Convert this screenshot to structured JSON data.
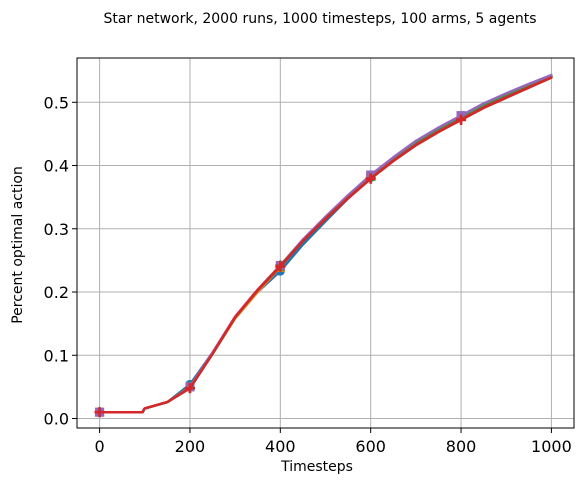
{
  "chart_data": {
    "type": "line",
    "title": "Star network, 2000 runs, 1000 timesteps, 100 arms, 5 agents",
    "xlabel": "Timesteps",
    "ylabel": "Percent optimal action",
    "xlim": [
      -50,
      1050
    ],
    "ylim": [
      -0.015,
      0.57
    ],
    "xticks": [
      0,
      200,
      400,
      600,
      800,
      1000
    ],
    "yticks": [
      0.0,
      0.1,
      0.2,
      0.3,
      0.4,
      0.5
    ],
    "xtick_labels": [
      "0",
      "200",
      "400",
      "600",
      "800",
      "1000"
    ],
    "ytick_labels": [
      "0.0",
      "0.1",
      "0.2",
      "0.3",
      "0.4",
      "0.5"
    ],
    "grid": true,
    "legend": "none",
    "x": [
      0,
      50,
      95,
      100,
      150,
      200,
      250,
      300,
      350,
      400,
      450,
      500,
      550,
      600,
      650,
      700,
      750,
      800,
      850,
      900,
      950,
      1000
    ],
    "marker_x": [
      0,
      200,
      400,
      600,
      800
    ],
    "series": [
      {
        "color": "#1f77b4",
        "marker": "circle",
        "values": [
          0.01,
          0.01,
          0.01,
          0.016,
          0.026,
          0.054,
          0.104,
          0.16,
          0.2,
          0.233,
          0.275,
          0.312,
          0.348,
          0.381,
          0.41,
          0.436,
          0.458,
          0.477,
          0.496,
          0.512,
          0.527,
          0.541
        ]
      },
      {
        "color": "#ff7f0e",
        "marker": "square",
        "values": [
          0.01,
          0.01,
          0.01,
          0.016,
          0.026,
          0.05,
          0.102,
          0.158,
          0.2,
          0.239,
          0.281,
          0.318,
          0.352,
          0.384,
          0.412,
          0.438,
          0.459,
          0.478,
          0.497,
          0.512,
          0.527,
          0.541
        ]
      },
      {
        "color": "#2ca02c",
        "marker": "triangle",
        "values": [
          0.01,
          0.01,
          0.01,
          0.016,
          0.026,
          0.051,
          0.103,
          0.16,
          0.203,
          0.24,
          0.28,
          0.316,
          0.35,
          0.382,
          0.411,
          0.437,
          0.458,
          0.477,
          0.495,
          0.511,
          0.526,
          0.54
        ]
      },
      {
        "color": "#9467bd",
        "marker": "square",
        "values": [
          0.01,
          0.01,
          0.01,
          0.016,
          0.026,
          0.05,
          0.104,
          0.161,
          0.204,
          0.242,
          0.283,
          0.319,
          0.353,
          0.385,
          0.413,
          0.439,
          0.46,
          0.479,
          0.498,
          0.514,
          0.529,
          0.543
        ]
      },
      {
        "color": "#8c564b",
        "marker": "plus",
        "values": [
          0.01,
          0.01,
          0.01,
          0.016,
          0.026,
          0.048,
          0.102,
          0.16,
          0.203,
          0.242,
          0.281,
          0.316,
          0.349,
          0.38,
          0.408,
          0.433,
          0.454,
          0.473,
          0.492,
          0.508,
          0.524,
          0.539
        ]
      },
      {
        "color": "#d62728",
        "marker": "plus",
        "values": [
          0.01,
          0.01,
          0.01,
          0.016,
          0.026,
          0.048,
          0.102,
          0.16,
          0.203,
          0.24,
          0.28,
          0.315,
          0.348,
          0.379,
          0.407,
          0.432,
          0.453,
          0.472,
          0.491,
          0.507,
          0.523,
          0.539
        ]
      }
    ]
  }
}
